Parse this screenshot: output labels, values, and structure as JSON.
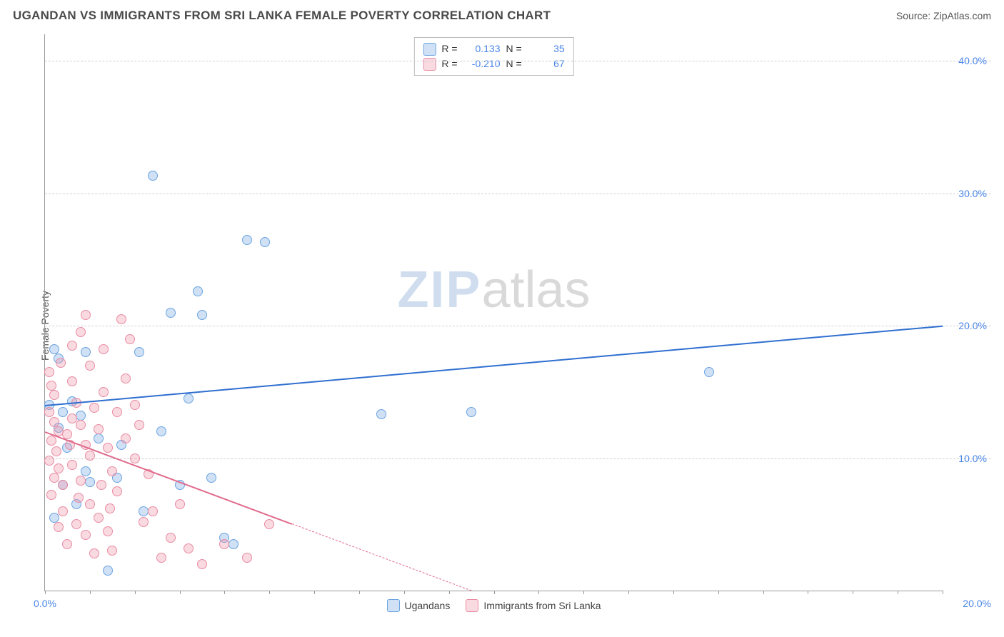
{
  "header": {
    "title": "UGANDAN VS IMMIGRANTS FROM SRI LANKA FEMALE POVERTY CORRELATION CHART",
    "source": "Source: ZipAtlas.com"
  },
  "y_axis_label": "Female Poverty",
  "watermark": {
    "part1": "ZIP",
    "part2": "atlas"
  },
  "chart": {
    "type": "scatter",
    "background_color": "#ffffff",
    "grid_color": "#d0d0d0",
    "axis_color": "#999999",
    "label_color": "#4a86e8",
    "xlim": [
      0,
      20
    ],
    "ylim": [
      0,
      42
    ],
    "y_ticks": [
      10,
      20,
      30,
      40
    ],
    "y_tick_labels": [
      "10.0%",
      "20.0%",
      "30.0%",
      "40.0%"
    ],
    "x_tick_positions": [
      0,
      1,
      2,
      3,
      4,
      5,
      6,
      7,
      8,
      9,
      10,
      11,
      12,
      13,
      14,
      15,
      16,
      17,
      18,
      19,
      20
    ],
    "x_tick_labels": {
      "left": "0.0%",
      "right": "20.0%"
    },
    "marker_radius": 7,
    "marker_stroke_width": 1.2,
    "series": [
      {
        "name": "Ugandans",
        "fill": "rgba(120,170,230,0.35)",
        "stroke": "#6aa3e0",
        "trend_color": "#2f6fd0",
        "trend": {
          "x1": 0,
          "y1": 14.0,
          "x2": 20,
          "y2": 20.0,
          "dash_after_x": null
        },
        "R": "0.133",
        "N": "35",
        "points": [
          [
            0.2,
            18.2
          ],
          [
            0.3,
            17.5
          ],
          [
            0.1,
            14.0
          ],
          [
            0.4,
            13.5
          ],
          [
            0.3,
            12.3
          ],
          [
            0.6,
            14.3
          ],
          [
            0.8,
            13.2
          ],
          [
            0.9,
            18.0
          ],
          [
            1.2,
            11.5
          ],
          [
            0.5,
            10.8
          ],
          [
            1.0,
            8.2
          ],
          [
            1.6,
            8.5
          ],
          [
            2.1,
            18.0
          ],
          [
            2.4,
            31.3
          ],
          [
            2.6,
            12.0
          ],
          [
            2.8,
            21.0
          ],
          [
            3.0,
            8.0
          ],
          [
            3.2,
            14.5
          ],
          [
            3.4,
            22.6
          ],
          [
            3.5,
            20.8
          ],
          [
            3.7,
            8.5
          ],
          [
            4.0,
            4.0
          ],
          [
            4.2,
            3.5
          ],
          [
            4.5,
            26.5
          ],
          [
            4.9,
            26.3
          ],
          [
            7.5,
            13.3
          ],
          [
            9.5,
            13.5
          ],
          [
            14.8,
            16.5
          ],
          [
            1.4,
            1.5
          ],
          [
            2.2,
            6.0
          ],
          [
            0.7,
            6.5
          ],
          [
            0.2,
            5.5
          ],
          [
            0.9,
            9.0
          ],
          [
            1.7,
            11.0
          ],
          [
            0.4,
            8.0
          ]
        ]
      },
      {
        "name": "Immigrants from Sri Lanka",
        "fill": "rgba(240,150,170,0.35)",
        "stroke": "#e88ba2",
        "trend_color": "#e06a8c",
        "trend": {
          "x1": 0,
          "y1": 12.0,
          "x2": 9.5,
          "y2": 0,
          "dash_after_x": 5.5
        },
        "R": "-0.210",
        "N": "67",
        "points": [
          [
            0.1,
            16.5
          ],
          [
            0.15,
            15.5
          ],
          [
            0.2,
            14.8
          ],
          [
            0.1,
            13.5
          ],
          [
            0.2,
            12.7
          ],
          [
            0.3,
            12.0
          ],
          [
            0.15,
            11.3
          ],
          [
            0.25,
            10.5
          ],
          [
            0.1,
            9.8
          ],
          [
            0.3,
            9.2
          ],
          [
            0.2,
            8.5
          ],
          [
            0.4,
            8.0
          ],
          [
            0.15,
            7.2
          ],
          [
            0.5,
            11.8
          ],
          [
            0.6,
            13.0
          ],
          [
            0.7,
            14.2
          ],
          [
            0.8,
            12.5
          ],
          [
            0.9,
            11.0
          ],
          [
            1.0,
            10.2
          ],
          [
            0.6,
            9.5
          ],
          [
            0.8,
            8.3
          ],
          [
            1.1,
            13.8
          ],
          [
            1.2,
            12.2
          ],
          [
            1.3,
            15.0
          ],
          [
            1.4,
            10.8
          ],
          [
            1.5,
            9.0
          ],
          [
            1.6,
            7.5
          ],
          [
            1.0,
            6.5
          ],
          [
            1.2,
            5.5
          ],
          [
            0.7,
            5.0
          ],
          [
            0.9,
            4.2
          ],
          [
            1.4,
            4.5
          ],
          [
            1.8,
            11.5
          ],
          [
            2.0,
            10.0
          ],
          [
            2.2,
            5.2
          ],
          [
            1.7,
            20.5
          ],
          [
            1.9,
            19.0
          ],
          [
            0.6,
            18.5
          ],
          [
            0.8,
            19.5
          ],
          [
            1.0,
            17.0
          ],
          [
            1.3,
            18.2
          ],
          [
            2.4,
            6.0
          ],
          [
            2.6,
            2.5
          ],
          [
            2.8,
            4.0
          ],
          [
            3.0,
            6.5
          ],
          [
            3.2,
            3.2
          ],
          [
            3.5,
            2.0
          ],
          [
            1.1,
            2.8
          ],
          [
            1.5,
            3.0
          ],
          [
            0.5,
            3.5
          ],
          [
            0.3,
            4.8
          ],
          [
            0.4,
            6.0
          ],
          [
            0.6,
            15.8
          ],
          [
            4.0,
            3.5
          ],
          [
            4.5,
            2.5
          ],
          [
            5.0,
            5.0
          ],
          [
            2.0,
            14.0
          ],
          [
            1.8,
            16.0
          ],
          [
            0.9,
            20.8
          ],
          [
            1.6,
            13.5
          ],
          [
            2.3,
            8.8
          ],
          [
            0.35,
            17.2
          ],
          [
            0.55,
            11.0
          ],
          [
            1.25,
            8.0
          ],
          [
            0.75,
            7.0
          ],
          [
            1.45,
            6.2
          ],
          [
            2.1,
            12.5
          ]
        ]
      }
    ]
  },
  "stat_legend": {
    "r_label": "R =",
    "n_label": "N ="
  },
  "bottom_legend": {
    "items": [
      "Ugandans",
      "Immigrants from Sri Lanka"
    ]
  }
}
